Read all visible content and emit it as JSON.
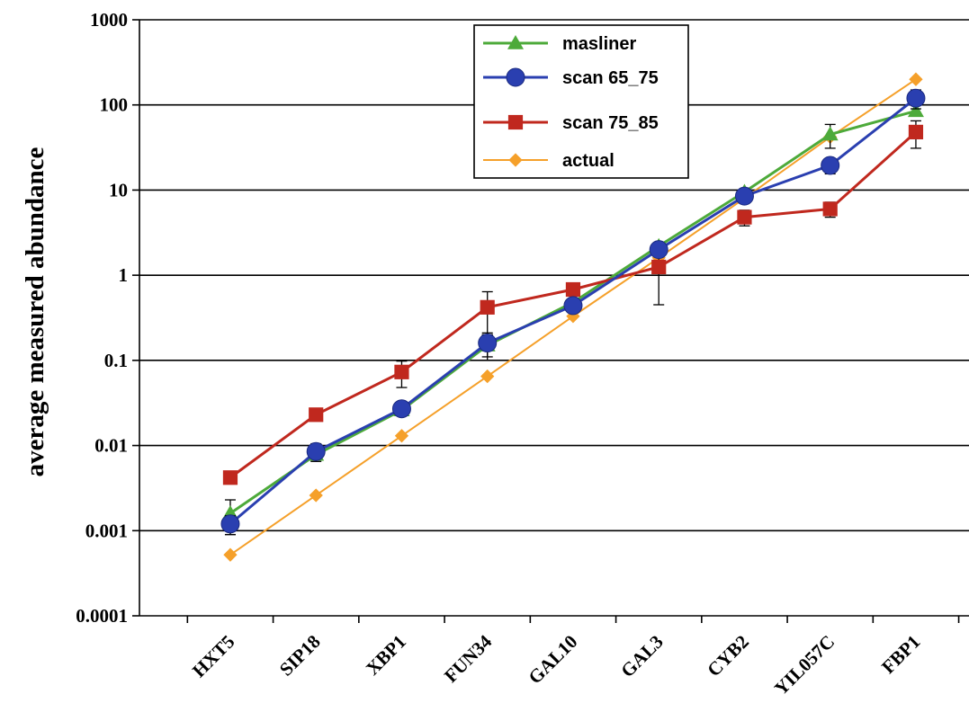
{
  "chart_data": {
    "type": "line",
    "ylabel": "average measured abundance",
    "xlabel": "",
    "yscale": "log",
    "ylim": [
      0.0001,
      1000
    ],
    "ytick_labels": [
      "0.0001",
      "0.001",
      "0.01",
      "0.1",
      "1",
      "10",
      "100",
      "1000"
    ],
    "grid": "horizontal",
    "legend_position": "top-right",
    "categories": [
      "HXT5",
      "SIP18",
      "XBP1",
      "FUN34",
      "GAL10",
      "GAL3",
      "CYB2",
      "YIL057C",
      "FBP1"
    ],
    "series": [
      {
        "name": "masliner",
        "color": "#4daa3a",
        "marker": "triangle",
        "values": [
          0.0016,
          0.0078,
          0.026,
          0.15,
          0.48,
          2.2,
          9.5,
          45,
          85
        ],
        "error_bars": [
          0.0007,
          null,
          null,
          0.05,
          null,
          null,
          null,
          14,
          null
        ]
      },
      {
        "name": "scan 65_75",
        "color": "#2a3fb0",
        "marker": "circle",
        "values": [
          0.0012,
          0.0085,
          0.027,
          0.16,
          0.44,
          2.0,
          8.5,
          19.5,
          120
        ],
        "error_bars": [
          0.0003,
          0.002,
          null,
          0.05,
          null,
          null,
          null,
          4,
          30
        ]
      },
      {
        "name": "scan 75_85",
        "color": "#c0281e",
        "marker": "square",
        "values": [
          0.0042,
          0.023,
          0.073,
          0.42,
          0.68,
          1.25,
          4.8,
          6.0,
          48
        ],
        "error_bars": [
          null,
          null,
          0.025,
          0.22,
          null,
          0.8,
          1.0,
          1.2,
          17
        ]
      },
      {
        "name": "actual",
        "color": "#f5a02a",
        "marker": "diamond",
        "values": [
          0.00052,
          0.0026,
          0.013,
          0.065,
          0.33,
          1.6,
          8.0,
          42,
          200
        ],
        "error_bars": [
          null,
          null,
          null,
          null,
          null,
          null,
          null,
          null,
          null
        ]
      }
    ]
  }
}
